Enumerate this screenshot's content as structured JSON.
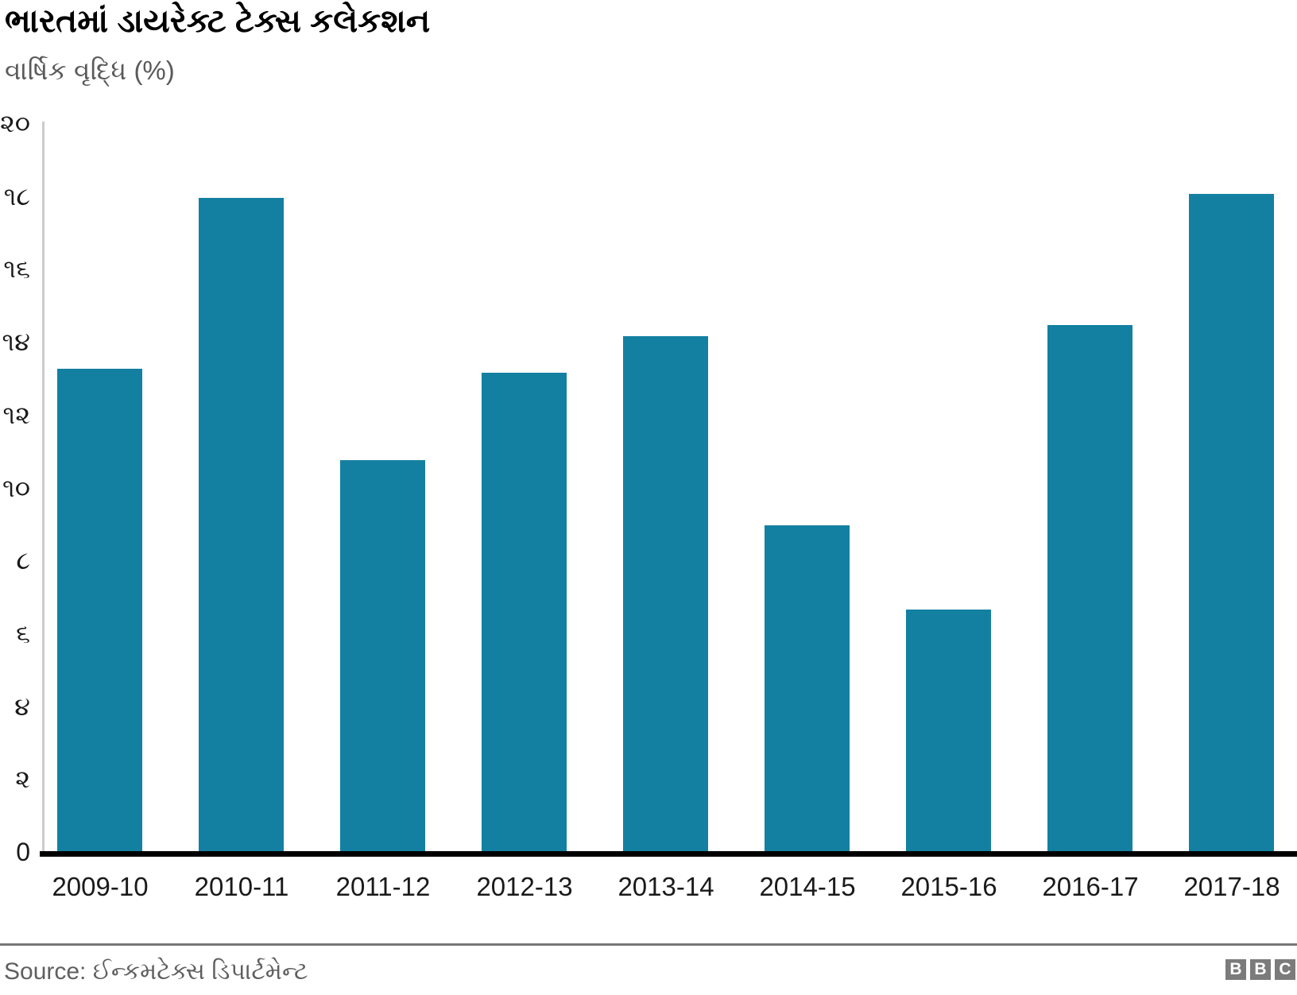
{
  "header": {
    "title": "ભારતમાં ડાયરેક્ટ ટેક્સ કલેકશન",
    "subtitle": "વાર્ષિક વૃદ્ધિ (%)"
  },
  "footer": {
    "source": "Source: ઈન્કમટેક્સ ડિપાર્ટમેન્ટ",
    "logo_letters": [
      "B",
      "B",
      "C"
    ]
  },
  "colors": {
    "bar": "#1380A1",
    "baseline": "#000000",
    "y_axis_line": "#cccccc",
    "title_text": "#000000",
    "subtitle_text": "#5a5a5a",
    "tick_text": "#1a1a1a",
    "source_text": "#5f5f5f",
    "divider": "#767676",
    "logo_block_bg": "#7b7b7b"
  },
  "chart_data": {
    "type": "bar",
    "title": "ભારતમાં ડાયરેક્ટ ટેક્સ કલેકશન",
    "subtitle": "વાર્ષિક વૃદ્ધિ (%)",
    "source": "Source: ઈન્કમટેક્સ ડિપાર્ટમેન્ટ",
    "categories": [
      "2009-10",
      "2010-11",
      "2011-12",
      "2012-13",
      "2013-14",
      "2014-15",
      "2015-16",
      "2016-17",
      "2017-18"
    ],
    "values": [
      13.3,
      18.0,
      10.8,
      13.2,
      14.2,
      9.0,
      6.7,
      14.5,
      18.1
    ],
    "xlabel": "",
    "ylabel": "વાર્ષિક વૃદ્ધિ (%)",
    "ylim": [
      0,
      20
    ],
    "yticks": {
      "values": [
        0,
        2,
        4,
        6,
        8,
        10,
        12,
        14,
        16,
        18,
        20
      ],
      "labels": [
        "0",
        "૨",
        "૪",
        "૬",
        "૮",
        "૧૦",
        "૧૨",
        "૧૪",
        "૧૬",
        "૧૮",
        "૨૦"
      ]
    },
    "grid": false,
    "legend": false,
    "bar_color": "#1380A1"
  }
}
